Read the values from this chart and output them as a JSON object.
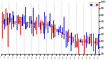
{
  "plot_bg": "#ffffff",
  "fig_bg": "#f8f8f8",
  "num_days": 365,
  "ylim": [
    20,
    100
  ],
  "y_ticks": [
    20,
    30,
    40,
    50,
    60,
    70,
    80,
    90,
    100
  ],
  "y_tick_labels": [
    "20",
    "30",
    "40",
    "50",
    "60",
    "70",
    "80",
    "90",
    "100"
  ],
  "grid_color": "#bbbbbb",
  "blue_color": "#0000cc",
  "red_color": "#cc0000",
  "bar_width": 0.55,
  "num_grids": 14,
  "legend_labels": [
    "",
    ""
  ],
  "legend_blue": "#0000cc",
  "legend_red": "#cc0000"
}
